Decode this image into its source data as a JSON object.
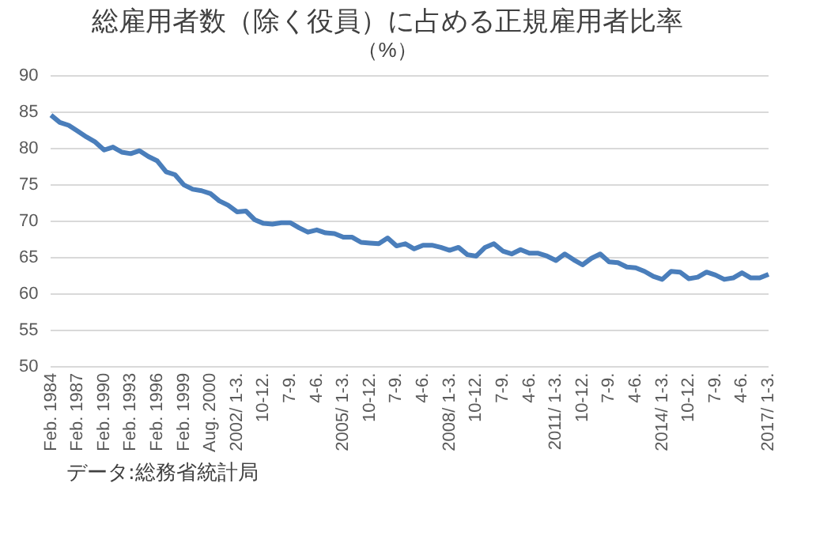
{
  "chart_data": {
    "type": "line",
    "title": "総雇用者数（除く役員）に占める正規雇用者比率",
    "subtitle": "（%）",
    "categories": [
      "Feb. 1984",
      null,
      null,
      "Feb. 1987",
      null,
      null,
      "Feb. 1990",
      null,
      null,
      "Feb. 1993",
      null,
      null,
      "Feb. 1996",
      null,
      null,
      "Feb. 1999",
      null,
      null,
      "Aug. 2000",
      null,
      null,
      "2002/ 1-3.",
      null,
      null,
      "10-12.",
      null,
      null,
      "7-9.",
      null,
      null,
      "4-6.",
      null,
      null,
      "2005/ 1-3.",
      null,
      null,
      "10-12.",
      null,
      null,
      "7-9.",
      null,
      null,
      "4-6.",
      null,
      null,
      "2008/ 1-3.",
      null,
      null,
      "10-12.",
      null,
      null,
      "7-9.",
      null,
      null,
      "4-6.",
      null,
      null,
      "2011/ 1-3.",
      null,
      null,
      "10-12.",
      null,
      null,
      "7-9.",
      null,
      null,
      "4-6.",
      null,
      null,
      "2014/ 1-3.",
      null,
      null,
      "10-12.",
      null,
      null,
      "7-9.",
      null,
      null,
      "4-6.",
      null,
      null,
      "2017/ 1-3."
    ],
    "series": [
      {
        "color": "#4a7ebb",
        "values": [
          84.6,
          83.6,
          83.2,
          82.4,
          81.6,
          80.9,
          79.8,
          80.2,
          79.5,
          79.3,
          79.7,
          78.9,
          78.3,
          76.8,
          76.4,
          75.0,
          74.4,
          74.2,
          73.8,
          72.8,
          72.2,
          71.3,
          71.4,
          70.2,
          69.7,
          69.6,
          69.8,
          69.8,
          69.1,
          68.5,
          68.8,
          68.4,
          68.3,
          67.8,
          67.8,
          67.1,
          67.0,
          66.9,
          67.7,
          66.6,
          66.9,
          66.2,
          66.7,
          66.7,
          66.4,
          66.0,
          66.4,
          65.4,
          65.2,
          66.4,
          66.9,
          65.9,
          65.5,
          66.1,
          65.6,
          65.6,
          65.2,
          64.6,
          65.5,
          64.7,
          64.0,
          64.9,
          65.5,
          64.4,
          64.3,
          63.7,
          63.6,
          63.1,
          62.4,
          62.0,
          63.1,
          63.0,
          62.1,
          62.3,
          63.0,
          62.6,
          62.0,
          62.2,
          62.9,
          62.2,
          62.2,
          62.7
        ]
      }
    ],
    "ylim": [
      50,
      90
    ],
    "yticks": [
      50,
      55,
      60,
      65,
      70,
      75,
      80,
      85,
      90
    ],
    "grid": "y",
    "legend": false,
    "marker": "none",
    "line_style": "solid",
    "annotations": [
      "データ:総務省統計局"
    ]
  }
}
